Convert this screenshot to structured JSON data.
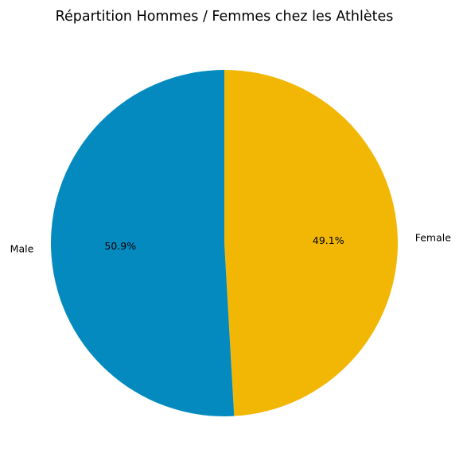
{
  "chart_data": {
    "type": "pie",
    "title": "Répartition Hommes / Femmes chez les Athlètes",
    "slices": [
      {
        "label": "Female",
        "value": 49.1,
        "pct_label": "49.1%",
        "color": "#f2b705"
      },
      {
        "label": "Male",
        "value": 50.9,
        "pct_label": "50.9%",
        "color": "#048abf"
      }
    ],
    "start_angle_deg": 90,
    "direction": "clockwise",
    "legend": "none"
  }
}
